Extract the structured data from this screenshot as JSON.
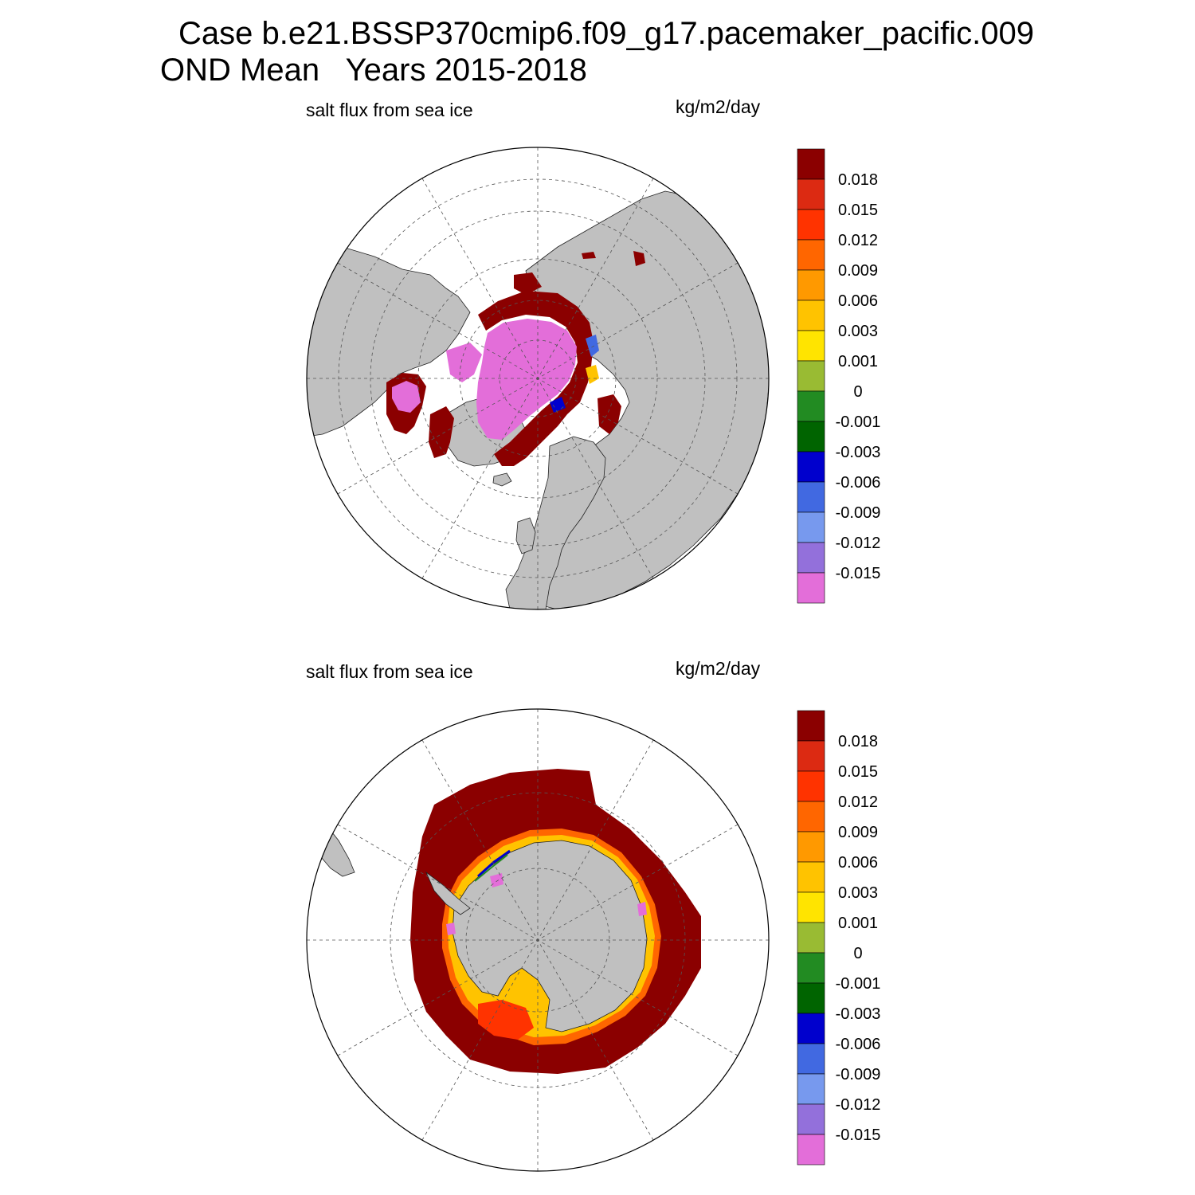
{
  "header": {
    "title_line1": "Case b.e21.BSSP370cmip6.f09_g17.pacemaker_pacific.009",
    "title_line2": "OND Mean   Years 2015-2018"
  },
  "colorbar": {
    "labels": [
      "0.018",
      "0.015",
      "0.012",
      "0.009",
      "0.006",
      "0.003",
      "0.001",
      "0",
      "-0.001",
      "-0.003",
      "-0.006",
      "-0.009",
      "-0.012",
      "-0.015"
    ],
    "colors": [
      "#8b0000",
      "#dc2a12",
      "#ff3300",
      "#ff6600",
      "#ff9900",
      "#ffc300",
      "#ffe400",
      "#99bb33",
      "#228b22",
      "#006400",
      "#0000cd",
      "#4169e1",
      "#7799ee",
      "#9370db",
      "#e36ed9"
    ]
  },
  "colors": {
    "land": "#c0c0c0",
    "ocean": "#ffffff"
  },
  "panels": [
    {
      "id": "north",
      "variable": "salt flux from sea ice",
      "units": "kg/m2/day",
      "hemisphere": "Northern Hemisphere polar stereographic"
    },
    {
      "id": "south",
      "variable": "salt flux from sea ice",
      "units": "kg/m2/day",
      "hemisphere": "Southern Hemisphere polar stereographic"
    }
  ]
}
